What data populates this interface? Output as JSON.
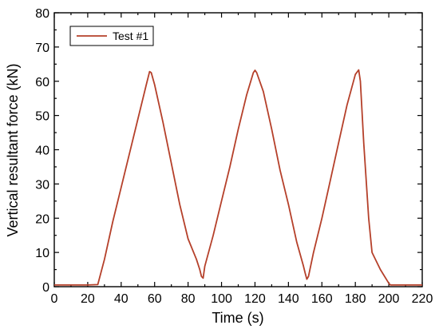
{
  "chart_data": {
    "type": "line",
    "xlabel": "Time (s)",
    "ylabel": "Vertical resultant force (kN)",
    "xlim": [
      0,
      220
    ],
    "ylim": [
      0,
      80
    ],
    "xticks": [
      0,
      20,
      40,
      60,
      80,
      100,
      120,
      140,
      160,
      180,
      200,
      220
    ],
    "yticks": [
      0,
      10,
      20,
      30,
      40,
      50,
      60,
      70,
      80
    ],
    "grid": false,
    "legend_position": "top-left",
    "series": [
      {
        "name": "Test #1",
        "color": "#b5402a",
        "x": [
          0,
          10,
          20,
          26,
          30,
          35,
          40,
          45,
          50,
          55,
          57,
          58,
          60,
          65,
          70,
          75,
          80,
          85,
          87,
          88,
          89,
          90,
          95,
          100,
          105,
          110,
          115,
          119,
          120,
          121,
          125,
          130,
          135,
          140,
          145,
          149,
          150,
          151,
          152,
          155,
          160,
          165,
          170,
          175,
          180,
          182,
          183,
          185,
          188,
          190,
          195,
          200,
          201,
          210,
          220
        ],
        "y": [
          0.5,
          0.5,
          0.5,
          0.6,
          8,
          19,
          29,
          39,
          49,
          59,
          62.8,
          62.5,
          59,
          48,
          36,
          24,
          14,
          8,
          5,
          3,
          2.5,
          6,
          15,
          25,
          35,
          46,
          56,
          62.5,
          63.2,
          62.5,
          57,
          46,
          34,
          24,
          13,
          6,
          4,
          2.2,
          3,
          10,
          20,
          31,
          42,
          53,
          62,
          63.3,
          60,
          42,
          20,
          10,
          5,
          1,
          0.5,
          0.5,
          0.5
        ]
      }
    ]
  }
}
